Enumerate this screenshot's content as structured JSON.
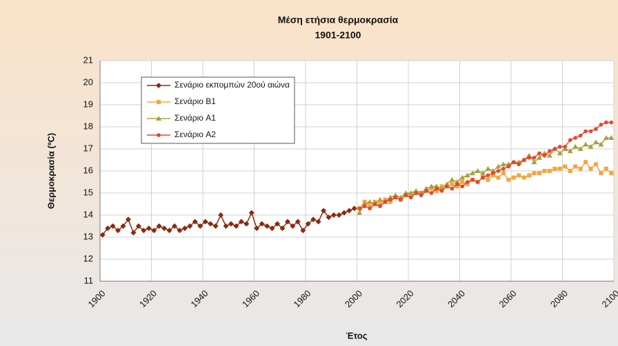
{
  "chart_data": {
    "type": "line",
    "title": "Μέση ετήσια θερμοκρασία",
    "subtitle": "1901-2100",
    "x_label": "Έτος",
    "y_label": "Θερμοκρασία (ºC)",
    "xlim": [
      1900,
      2100
    ],
    "xticks": [
      1900,
      1920,
      1940,
      1960,
      1980,
      2000,
      2020,
      2040,
      2060,
      2080,
      2100
    ],
    "ylim": [
      11,
      21
    ],
    "yticks": [
      11,
      12,
      13,
      14,
      15,
      16,
      17,
      18,
      19,
      20,
      21
    ],
    "grid": true,
    "legend": "upper left",
    "series": [
      {
        "name": "Σενάριο εκπομπών 20ού αιώνα",
        "color": "#8b2a0e",
        "marker": "diamond",
        "x": [
          1901,
          1903,
          1905,
          1907,
          1909,
          1911,
          1913,
          1915,
          1917,
          1919,
          1921,
          1923,
          1925,
          1927,
          1929,
          1931,
          1933,
          1935,
          1937,
          1939,
          1941,
          1943,
          1945,
          1947,
          1949,
          1951,
          1953,
          1955,
          1957,
          1959,
          1961,
          1963,
          1965,
          1967,
          1969,
          1971,
          1973,
          1975,
          1977,
          1979,
          1981,
          1983,
          1985,
          1987,
          1989,
          1991,
          1993,
          1995,
          1997,
          1999
        ],
        "values": [
          13.1,
          13.4,
          13.5,
          13.3,
          13.5,
          13.8,
          13.2,
          13.5,
          13.3,
          13.4,
          13.3,
          13.5,
          13.4,
          13.3,
          13.5,
          13.3,
          13.4,
          13.5,
          13.7,
          13.5,
          13.7,
          13.6,
          13.5,
          14.0,
          13.5,
          13.6,
          13.5,
          13.7,
          13.6,
          14.1,
          13.4,
          13.6,
          13.5,
          13.4,
          13.6,
          13.4,
          13.7,
          13.5,
          13.7,
          13.3,
          13.6,
          13.8,
          13.7,
          14.2,
          13.9,
          14.0,
          14.0,
          14.1,
          14.2,
          14.3
        ]
      },
      {
        "name": "Σενάριο B1",
        "color": "#f7a53b",
        "marker": "square",
        "x": [
          2001,
          2003,
          2005,
          2007,
          2009,
          2011,
          2013,
          2015,
          2017,
          2019,
          2021,
          2023,
          2025,
          2027,
          2029,
          2031,
          2033,
          2035,
          2037,
          2039,
          2041,
          2043,
          2045,
          2047,
          2049,
          2051,
          2053,
          2055,
          2057,
          2059,
          2061,
          2063,
          2065,
          2067,
          2069,
          2071,
          2073,
          2075,
          2077,
          2079,
          2081,
          2083,
          2085,
          2087,
          2089,
          2091,
          2093,
          2095,
          2097,
          2099
        ],
        "values": [
          14.3,
          14.6,
          14.4,
          14.6,
          14.5,
          14.7,
          14.6,
          14.8,
          14.7,
          14.9,
          14.9,
          15.0,
          15.0,
          15.1,
          15.2,
          15.1,
          15.3,
          15.3,
          15.4,
          15.3,
          15.5,
          15.4,
          15.6,
          15.5,
          15.7,
          15.6,
          15.8,
          15.7,
          15.9,
          15.6,
          15.7,
          15.8,
          15.7,
          15.8,
          15.9,
          15.9,
          16.0,
          16.0,
          16.1,
          16.1,
          16.2,
          16.0,
          16.2,
          16.1,
          16.4,
          16.1,
          16.3,
          15.9,
          16.1,
          15.9
        ]
      },
      {
        "name": "Σενάριο A1",
        "color": "#a8a040",
        "marker": "triangle",
        "x": [
          2001,
          2003,
          2005,
          2007,
          2009,
          2011,
          2013,
          2015,
          2017,
          2019,
          2021,
          2023,
          2025,
          2027,
          2029,
          2031,
          2033,
          2035,
          2037,
          2039,
          2041,
          2043,
          2045,
          2047,
          2049,
          2051,
          2053,
          2055,
          2057,
          2059,
          2061,
          2063,
          2065,
          2067,
          2069,
          2071,
          2073,
          2075,
          2077,
          2079,
          2081,
          2083,
          2085,
          2087,
          2089,
          2091,
          2093,
          2095,
          2097,
          2099
        ],
        "values": [
          14.1,
          14.5,
          14.6,
          14.5,
          14.7,
          14.6,
          14.8,
          14.9,
          14.8,
          15.0,
          15.0,
          15.1,
          15.0,
          15.2,
          15.3,
          15.3,
          15.2,
          15.4,
          15.6,
          15.5,
          15.7,
          15.8,
          15.9,
          16.0,
          15.9,
          16.1,
          16.0,
          16.2,
          16.3,
          16.3,
          16.4,
          16.4,
          16.5,
          16.7,
          16.4,
          16.6,
          16.8,
          16.7,
          17.0,
          16.8,
          17.0,
          16.9,
          17.1,
          17.0,
          17.2,
          17.1,
          17.3,
          17.2,
          17.5,
          17.5
        ]
      },
      {
        "name": "Σενάριο A2",
        "color": "#e8452a",
        "marker": "circle",
        "x": [
          2001,
          2003,
          2005,
          2007,
          2009,
          2011,
          2013,
          2015,
          2017,
          2019,
          2021,
          2023,
          2025,
          2027,
          2029,
          2031,
          2033,
          2035,
          2037,
          2039,
          2041,
          2043,
          2045,
          2047,
          2049,
          2051,
          2053,
          2055,
          2057,
          2059,
          2061,
          2063,
          2065,
          2067,
          2069,
          2071,
          2073,
          2075,
          2077,
          2079,
          2081,
          2083,
          2085,
          2087,
          2089,
          2091,
          2093,
          2095,
          2097,
          2099
        ],
        "values": [
          14.3,
          14.4,
          14.3,
          14.5,
          14.4,
          14.6,
          14.7,
          14.8,
          14.7,
          14.9,
          14.8,
          15.0,
          14.9,
          15.1,
          15.0,
          15.2,
          15.1,
          15.3,
          15.2,
          15.4,
          15.3,
          15.5,
          15.6,
          15.5,
          15.7,
          15.8,
          15.9,
          16.0,
          16.1,
          16.2,
          16.4,
          16.3,
          16.5,
          16.6,
          16.6,
          16.8,
          16.7,
          16.9,
          17.0,
          17.1,
          17.1,
          17.4,
          17.5,
          17.6,
          17.8,
          17.8,
          17.9,
          18.1,
          18.2,
          18.2
        ]
      }
    ]
  }
}
